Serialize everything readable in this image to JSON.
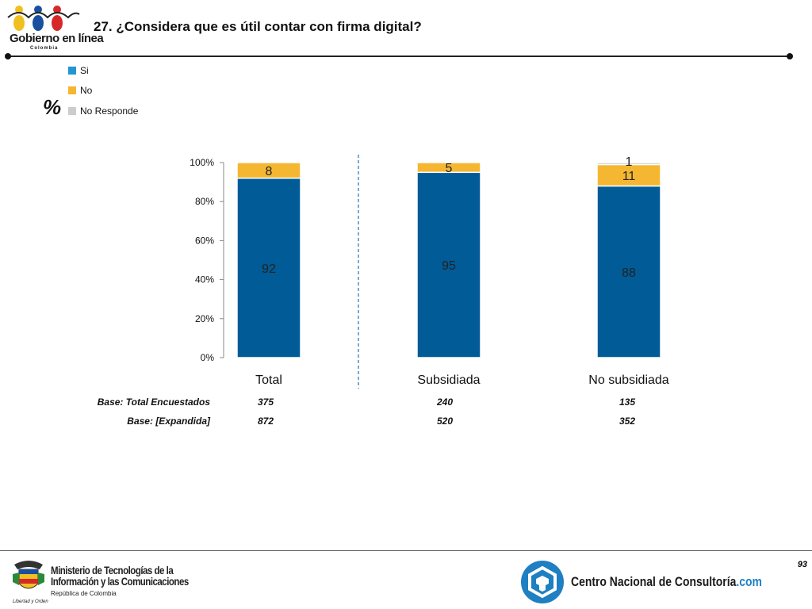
{
  "header": {
    "logo_text": "Gobierno en línea",
    "logo_sub": "Colombia",
    "title": "27. ¿Considera que es útil contar con firma digital?"
  },
  "percent_symbol": "%",
  "colors": {
    "si": "#005b96",
    "no": "#f5b731",
    "no_responde": "#cccccc",
    "divider": "#2a6fa8",
    "cnc_blue": "#1e7fc2"
  },
  "chart_data": {
    "type": "bar",
    "stacked": true,
    "title": "27. ¿Considera que es útil contar con firma digital?",
    "categories": [
      "Total",
      "Subsidiada",
      "No subsidiada"
    ],
    "series": [
      {
        "name": "Si",
        "values": [
          92,
          95,
          88
        ],
        "labels": [
          "92",
          "95",
          "88"
        ]
      },
      {
        "name": "No",
        "values": [
          8,
          5,
          11
        ],
        "labels": [
          "8",
          "5",
          "11"
        ]
      },
      {
        "name": "No Responde",
        "values": [
          0,
          0,
          1
        ],
        "labels": [
          "",
          "",
          "1"
        ]
      }
    ],
    "yticks": [
      "0%",
      "20%",
      "40%",
      "60%",
      "80%",
      "100%"
    ],
    "ylim": [
      0,
      100
    ],
    "legend_position": "top-left"
  },
  "bases": {
    "total_label": "Base: Total Encuestados",
    "total_values": [
      "375",
      "240",
      "135"
    ],
    "expandida_label": "Base: [Expandida]",
    "expandida_values": [
      "872",
      "520",
      "352"
    ]
  },
  "footer": {
    "page_number": "93",
    "mintic_line1": "Ministerio de Tecnologías de la",
    "mintic_line2": "Información y las Comunicaciones",
    "mintic_sub": "República de Colombia",
    "mintic_lema": "Libertad y Orden",
    "cnc_name": "Centro Nacional de Consultoría",
    "cnc_suffix": ".com"
  }
}
